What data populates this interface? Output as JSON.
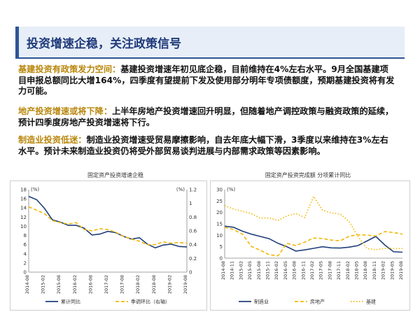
{
  "slide": {
    "title": "投资增速企稳，关注政策信号",
    "paragraphs": [
      {
        "lead": "基建投资有政策发力空间：",
        "body": "基建投资增速年初见底企稳，目前维持在4%左右水平。9月全国基建项目申报总额同比大增164%，四季度有望提前下发及使用部分明年专项债额度，预期基建投资将有发力可能。"
      },
      {
        "lead": "地产投资增速或将下降：",
        "body": "上半年房地产投资增速回升明显，但随着地产调控政策与融资政策的延续，预计四季度房地产投资增速将下行。"
      },
      {
        "lead": "制造业投资低迷：",
        "body": "制造业投资增速受贸易摩擦影响，自去年底大幅下滑，3季度以来维持在3%左右水平。预计未来制造业投资仍将受外部贸易谈判进展与内部需求政策等因素影响。"
      }
    ]
  },
  "colors": {
    "title": "#1f3a7a",
    "lead": "#b8860b",
    "navy": "#1f3f7a",
    "gold": "#f2b705"
  },
  "chart_data": [
    {
      "type": "line",
      "title": "固定资产投资增速企稳",
      "x": [
        "2014-08",
        "2014-11",
        "2015-02",
        "2015-05",
        "2015-08",
        "2015-11",
        "2016-02",
        "2016-05",
        "2016-08",
        "2016-11",
        "2017-02",
        "2017-05",
        "2017-08",
        "2017-11",
        "2018-02",
        "2018-05",
        "2018-08",
        "2018-11",
        "2019-02",
        "2019-05",
        "2019-08"
      ],
      "xticks": [
        "2014-08",
        "2015-02",
        "2015-08",
        "2016-02",
        "2016-08",
        "2017-02",
        "2017-08",
        "2018-02",
        "2018-08",
        "2019-02",
        "2019-08"
      ],
      "y_unit_left": "(%)",
      "y_unit_right": "(%)",
      "ylim_left": [
        0,
        18
      ],
      "yticks_left": [
        0,
        2,
        4,
        6,
        8,
        10,
        12,
        14,
        16,
        18
      ],
      "ylim_right": [
        0,
        1.2
      ],
      "yticks_right": [
        0,
        0.2,
        0.4,
        0.6,
        0.8,
        1,
        1.2
      ],
      "series": [
        {
          "name": "累计同比",
          "axis": "left",
          "style": "solid",
          "color": "#1f3f7a",
          "values": [
            16.5,
            15.8,
            13.9,
            11.4,
            10.9,
            10.2,
            10.2,
            9.6,
            8.1,
            8.3,
            8.9,
            8.6,
            7.8,
            7.2,
            7.5,
            6.1,
            5.3,
            5.9,
            6.1,
            5.6,
            5.5
          ]
        },
        {
          "name": "季调环比（右轴）",
          "axis": "right",
          "style": "dashed",
          "color": "#f2b705",
          "values": [
            0.95,
            0.9,
            0.85,
            0.75,
            0.72,
            0.7,
            0.72,
            0.62,
            0.6,
            0.63,
            0.62,
            0.58,
            0.52,
            0.48,
            0.45,
            0.4,
            0.4,
            0.44,
            0.42,
            0.43,
            0.42
          ]
        }
      ]
    },
    {
      "type": "line",
      "title": "固定资产投资完成额 分项累计同比",
      "x": [
        "2014-08",
        "2014-11",
        "2015-02",
        "2015-05",
        "2015-08",
        "2015-11",
        "2016-02",
        "2016-05",
        "2016-08",
        "2016-11",
        "2017-02",
        "2017-05",
        "2017-08",
        "2017-11",
        "2018-02",
        "2018-05",
        "2018-08",
        "2018-11",
        "2019-02",
        "2019-05",
        "2019-08"
      ],
      "xticks": [
        "2014-08",
        "2014-11",
        "2015-02",
        "2015-05",
        "2015-08",
        "2015-11",
        "2016-02",
        "2016-05",
        "2016-08",
        "2016-11",
        "2017-02",
        "2017-05",
        "2017-08",
        "2017-11",
        "2018-02",
        "2018-05",
        "2018-08",
        "2018-11",
        "2019-02",
        "2019-05",
        "2019-08"
      ],
      "y_unit": "(%)",
      "ylim": [
        0,
        30
      ],
      "yticks": [
        0,
        5,
        10,
        15,
        20,
        25,
        30
      ],
      "series": [
        {
          "name": "制造业",
          "style": "solid",
          "color": "#1f3f7a",
          "values": [
            14,
            13.5,
            11.8,
            10.5,
            9.5,
            8.5,
            6.5,
            5,
            3.1,
            3.6,
            4.3,
            5,
            4.5,
            4.4,
            4.8,
            5.5,
            7.5,
            9.5,
            5.8,
            2.8,
            2.6
          ]
        },
        {
          "name": "房地产",
          "style": "dashed",
          "color": "#f2b705",
          "values": [
            13.5,
            12.5,
            10.5,
            5.1,
            3.5,
            1.5,
            1,
            6.5,
            5.5,
            7,
            8.8,
            8.6,
            7.9,
            7.6,
            9.6,
            10.2,
            10.1,
            9.7,
            11.6,
            11.2,
            10.5
          ]
        },
        {
          "name": "基建",
          "style": "dotted",
          "color": "#f2b705",
          "values": [
            23,
            21.5,
            20.5,
            19.5,
            17.5,
            17.6,
            16.5,
            18.5,
            19.5,
            17.8,
            27,
            21,
            19.8,
            19.3,
            16,
            9.5,
            4.2,
            3.7,
            4.3,
            4.2,
            4.2
          ]
        }
      ]
    }
  ]
}
